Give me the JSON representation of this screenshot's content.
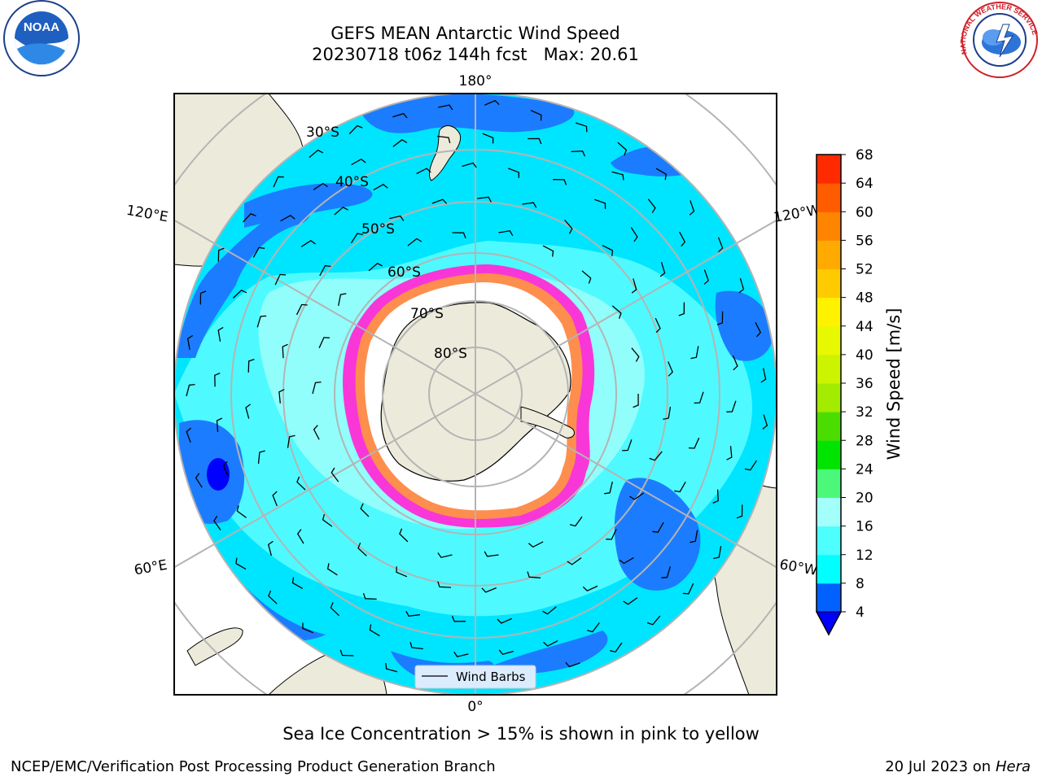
{
  "title": {
    "line1": "GEFS MEAN Antarctic Wind Speed",
    "line2": "20230718 t06z 144h fcst   Max: 20.61"
  },
  "logos": {
    "left": {
      "icon": "noaa-logo",
      "text": "NOAA"
    },
    "right": {
      "icon": "nws-logo",
      "text": "NATIONAL WEATHER SERVICE"
    }
  },
  "map": {
    "projection": "south-polar-stereographic",
    "longitude_labels": {
      "top": "180°",
      "bottom": "0°",
      "upper_left": "120°E",
      "upper_right": "120°W",
      "lower_left": "60°E",
      "lower_right": "60°W"
    },
    "latitude_labels": [
      "30°S",
      "40°S",
      "50°S",
      "60°S",
      "70°S",
      "80°S"
    ],
    "legend": {
      "label": "Wind Barbs"
    },
    "colors": {
      "land": "#ecebdb",
      "ocean_low": "#00e5ff",
      "ocean_mid": "#4efaff",
      "ocean_high": "#a8fff9",
      "ocean_calm": "#1c7cff",
      "ocean_calmest": "#0000ff",
      "sea_ice_edge": "#ff2bd6",
      "sea_ice_inner": "#ffa52b",
      "grid": "#b4b4b4"
    }
  },
  "colorbar": {
    "label": "Wind Speed [m/s]",
    "ticks": [
      "4",
      "8",
      "12",
      "16",
      "20",
      "24",
      "28",
      "32",
      "36",
      "40",
      "44",
      "48",
      "52",
      "56",
      "60",
      "64",
      "68"
    ],
    "colors": [
      "#0061ff",
      "#00ffff",
      "#4dffff",
      "#a2fff9",
      "#4cf87a",
      "#00e400",
      "#4cdd00",
      "#a3eb00",
      "#ccf300",
      "#e8f800",
      "#fff200",
      "#ffcb00",
      "#ffaa00",
      "#ff8500",
      "#ff5c00",
      "#ff2a00",
      "#ff0000"
    ],
    "extend_color": "#0000ff"
  },
  "note": "Sea Ice Concentration > 15% is shown in pink to yellow",
  "footer": {
    "left": "NCEP/EMC/Verification Post Processing Product Generation Branch",
    "right_date": "20 Jul 2023 on ",
    "right_machine": "Hera"
  }
}
